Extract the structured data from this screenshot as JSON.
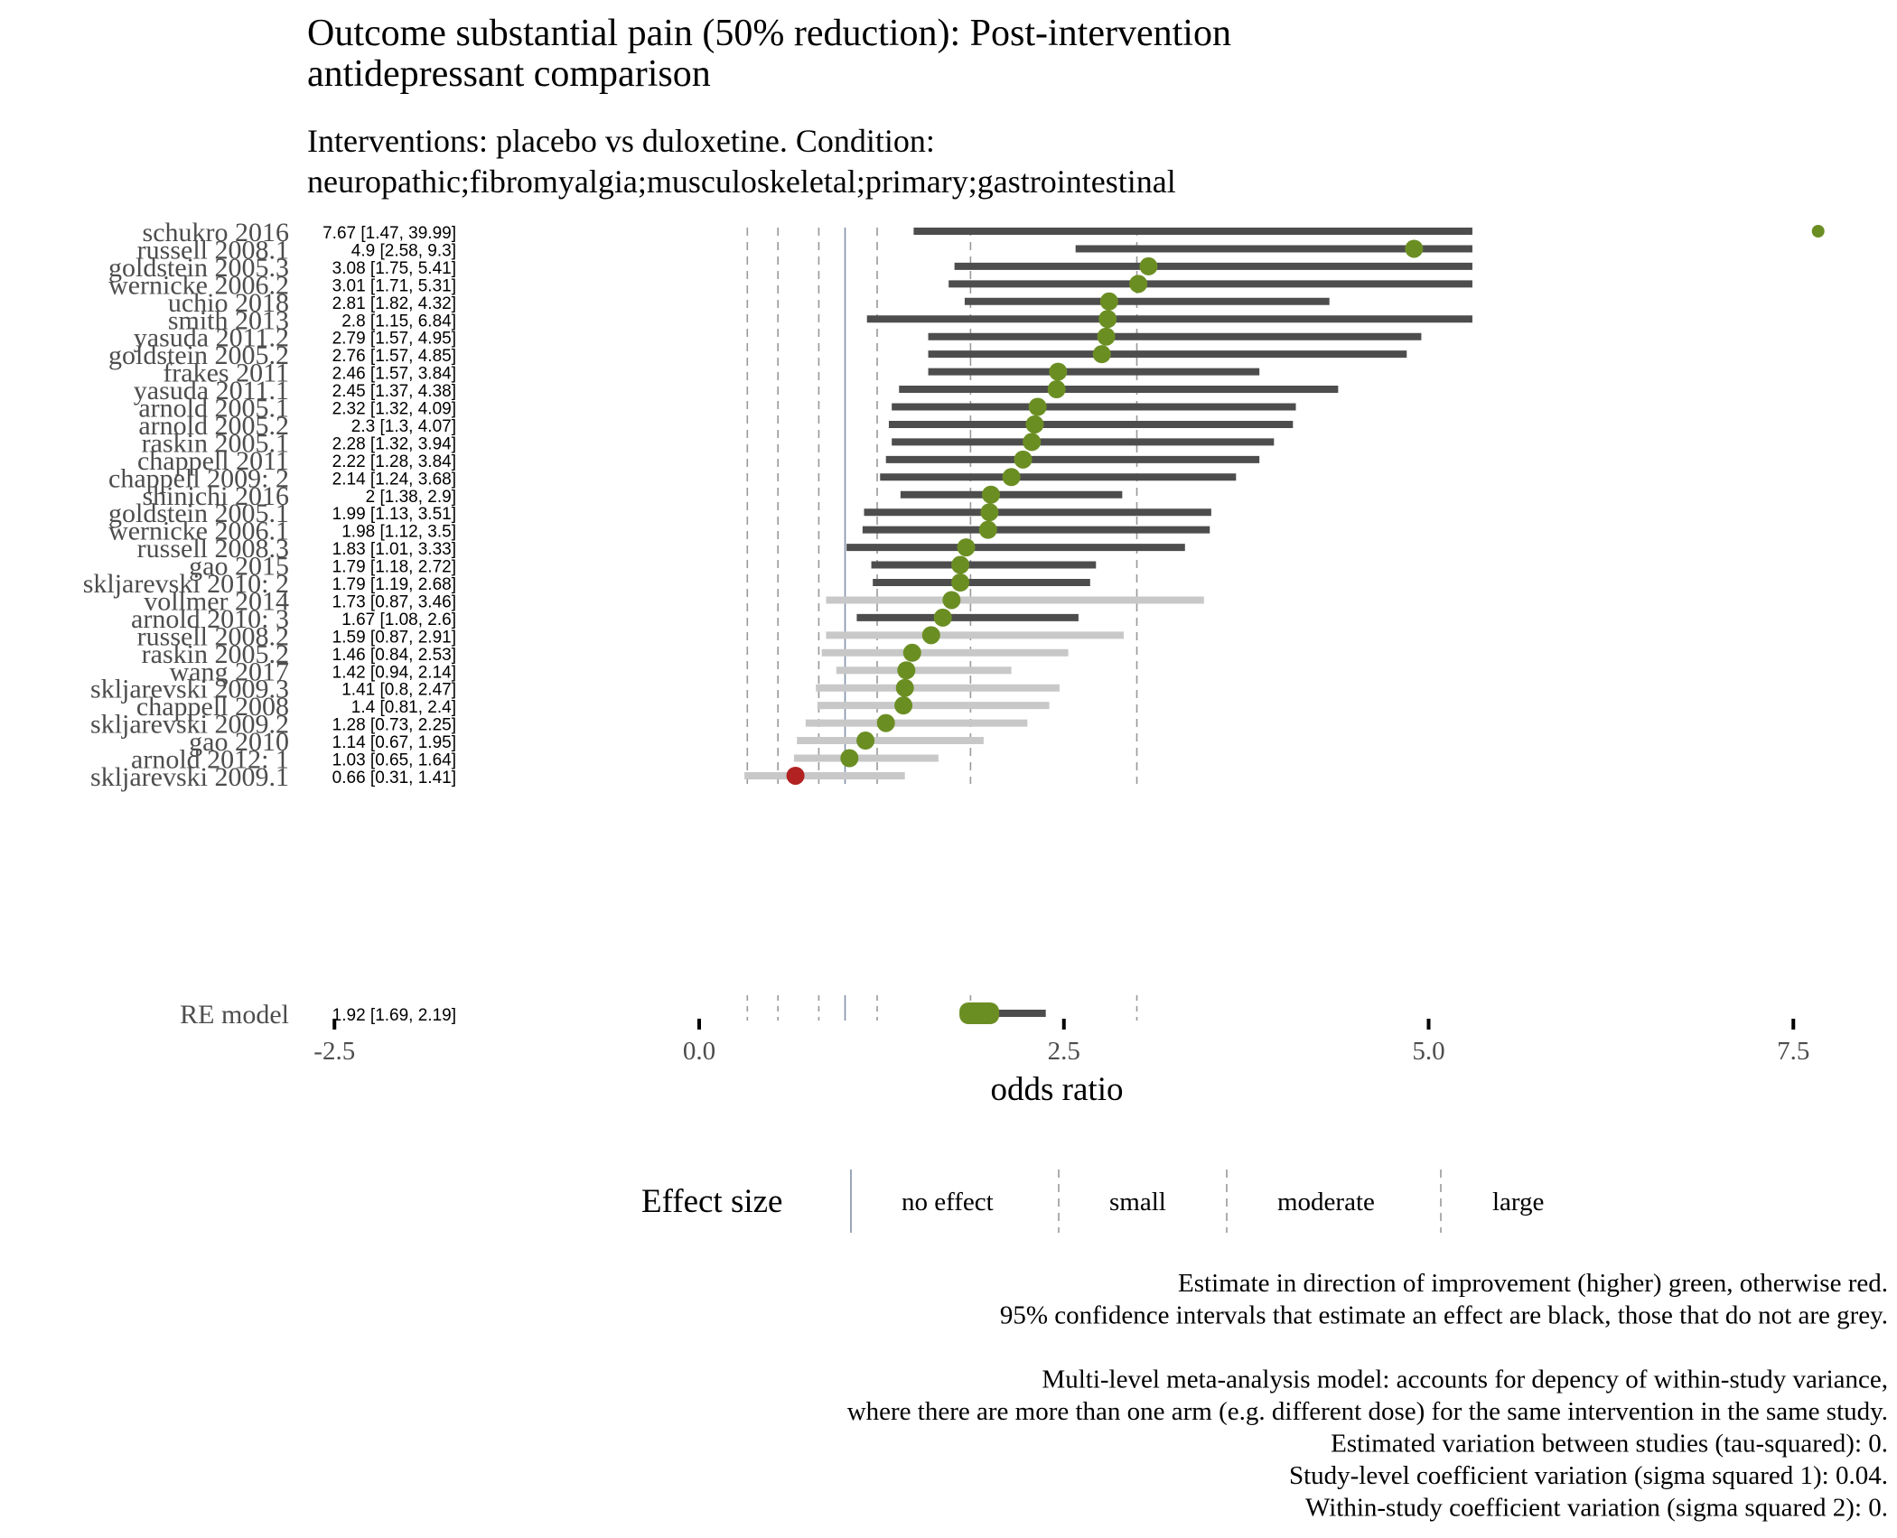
{
  "chart_data": {
    "type": "forest",
    "title_lines": [
      "Outcome substantial pain (50% reduction): Post-intervention",
      "antidepressant comparison"
    ],
    "subtitle_lines": [
      "Interventions: placebo vs duloxetine. Condition:",
      "neuropathic;fibromyalgia;musculoskeletal;primary;gastrointestinal"
    ],
    "xlabel": "odds ratio",
    "xlim": [
      -2.5,
      7.5
    ],
    "x_ticks": [
      -2.5,
      0.0,
      2.5,
      5.0,
      7.5
    ],
    "x_tick_labels": [
      "-2.5",
      "0.0",
      "2.5",
      "5.0",
      "7.5"
    ],
    "studies": [
      {
        "name": "schukro 2016",
        "label": "7.67 [1.47, 39.99]",
        "est": 7.67,
        "lo": 1.47,
        "hi": 39.99
      },
      {
        "name": "russell 2008.1",
        "label": "4.9 [2.58, 9.3]",
        "est": 4.9,
        "lo": 2.58,
        "hi": 9.3
      },
      {
        "name": "goldstein 2005.3",
        "label": "3.08 [1.75, 5.41]",
        "est": 3.08,
        "lo": 1.75,
        "hi": 5.41
      },
      {
        "name": "wernicke 2006.2",
        "label": "3.01 [1.71, 5.31]",
        "est": 3.01,
        "lo": 1.71,
        "hi": 5.31
      },
      {
        "name": "uchio 2018",
        "label": "2.81 [1.82, 4.32]",
        "est": 2.81,
        "lo": 1.82,
        "hi": 4.32
      },
      {
        "name": "smith 2013",
        "label": "2.8 [1.15, 6.84]",
        "est": 2.8,
        "lo": 1.15,
        "hi": 6.84
      },
      {
        "name": "yasuda 2011.2",
        "label": "2.79 [1.57, 4.95]",
        "est": 2.79,
        "lo": 1.57,
        "hi": 4.95
      },
      {
        "name": "goldstein 2005.2",
        "label": "2.76 [1.57, 4.85]",
        "est": 2.76,
        "lo": 1.57,
        "hi": 4.85
      },
      {
        "name": "frakes 2011",
        "label": "2.46 [1.57, 3.84]",
        "est": 2.46,
        "lo": 1.57,
        "hi": 3.84
      },
      {
        "name": "yasuda 2011.1",
        "label": "2.45 [1.37, 4.38]",
        "est": 2.45,
        "lo": 1.37,
        "hi": 4.38
      },
      {
        "name": "arnold 2005.1",
        "label": "2.32 [1.32, 4.09]",
        "est": 2.32,
        "lo": 1.32,
        "hi": 4.09
      },
      {
        "name": "arnold 2005.2",
        "label": "2.3 [1.3, 4.07]",
        "est": 2.3,
        "lo": 1.3,
        "hi": 4.07
      },
      {
        "name": "raskin 2005.1",
        "label": "2.28 [1.32, 3.94]",
        "est": 2.28,
        "lo": 1.32,
        "hi": 3.94
      },
      {
        "name": "chappell 2011",
        "label": "2.22 [1.28, 3.84]",
        "est": 2.22,
        "lo": 1.28,
        "hi": 3.84
      },
      {
        "name": "chappell 2009: 2",
        "label": "2.14 [1.24, 3.68]",
        "est": 2.14,
        "lo": 1.24,
        "hi": 3.68
      },
      {
        "name": "shinichi 2016",
        "label": "2 [1.38, 2.9]",
        "est": 2.0,
        "lo": 1.38,
        "hi": 2.9
      },
      {
        "name": "goldstein 2005.1",
        "label": "1.99 [1.13, 3.51]",
        "est": 1.99,
        "lo": 1.13,
        "hi": 3.51
      },
      {
        "name": "wernicke 2006.1",
        "label": "1.98 [1.12, 3.5]",
        "est": 1.98,
        "lo": 1.12,
        "hi": 3.5
      },
      {
        "name": "russell 2008.3",
        "label": "1.83 [1.01, 3.33]",
        "est": 1.83,
        "lo": 1.01,
        "hi": 3.33
      },
      {
        "name": "gao 2015",
        "label": "1.79 [1.18, 2.72]",
        "est": 1.79,
        "lo": 1.18,
        "hi": 2.72
      },
      {
        "name": "skljarevski 2010: 2",
        "label": "1.79 [1.19, 2.68]",
        "est": 1.79,
        "lo": 1.19,
        "hi": 2.68
      },
      {
        "name": "vollmer 2014",
        "label": "1.73 [0.87, 3.46]",
        "est": 1.73,
        "lo": 0.87,
        "hi": 3.46
      },
      {
        "name": "arnold 2010: 3",
        "label": "1.67 [1.08, 2.6]",
        "est": 1.67,
        "lo": 1.08,
        "hi": 2.6
      },
      {
        "name": "russell 2008.2",
        "label": "1.59 [0.87, 2.91]",
        "est": 1.59,
        "lo": 0.87,
        "hi": 2.91
      },
      {
        "name": "raskin 2005.2",
        "label": "1.46 [0.84, 2.53]",
        "est": 1.46,
        "lo": 0.84,
        "hi": 2.53
      },
      {
        "name": "wang 2017",
        "label": "1.42 [0.94, 2.14]",
        "est": 1.42,
        "lo": 0.94,
        "hi": 2.14
      },
      {
        "name": "skljarevski 2009.3",
        "label": "1.41 [0.8, 2.47]",
        "est": 1.41,
        "lo": 0.8,
        "hi": 2.47
      },
      {
        "name": "chappell 2008",
        "label": "1.4 [0.81, 2.4]",
        "est": 1.4,
        "lo": 0.81,
        "hi": 2.4
      },
      {
        "name": "skljarevski 2009.2",
        "label": "1.28 [0.73, 2.25]",
        "est": 1.28,
        "lo": 0.73,
        "hi": 2.25
      },
      {
        "name": "gao 2010",
        "label": "1.14 [0.67, 1.95]",
        "est": 1.14,
        "lo": 0.67,
        "hi": 1.95
      },
      {
        "name": "arnold 2012: 1",
        "label": "1.03 [0.65, 1.64]",
        "est": 1.03,
        "lo": 0.65,
        "hi": 1.64
      },
      {
        "name": "skljarevski 2009.1",
        "label": "0.66 [0.31, 1.41]",
        "est": 0.66,
        "lo": 0.31,
        "hi": 1.41
      }
    ],
    "summary": {
      "name": "RE model",
      "label": "1.92 [1.69, 2.19]",
      "est": 1.92,
      "lo": 1.69,
      "hi": 2.19
    },
    "x_clip_max": 5.3,
    "reference_lines": [
      {
        "value": 1.0,
        "kind": "no effect",
        "dash": "solid"
      },
      {
        "value": 1.22,
        "kind": "small",
        "dash": "dashed"
      },
      {
        "value": 1.86,
        "kind": "moderate",
        "dash": "dashed"
      },
      {
        "value": 3.0,
        "kind": "large",
        "dash": "dashed"
      },
      {
        "value": 0.82,
        "kind": "small",
        "dash": "dashed"
      },
      {
        "value": 0.54,
        "kind": "moderate",
        "dash": "dashed"
      },
      {
        "value": 0.33,
        "kind": "large",
        "dash": "dashed"
      }
    ],
    "legend": {
      "title": "Effect size",
      "items": [
        "no effect",
        "small",
        "moderate",
        "large"
      ],
      "placement": "bottom"
    },
    "colors": {
      "improvement": "#6b8e23",
      "no_improvement": "#b22222",
      "ci_effect": "#4d4d4d",
      "ci_no_effect": "#c8c8c8",
      "no_effect_line": "#8090a8",
      "dashed_line": "#999999"
    },
    "caption_lines": [
      "Estimate in direction of improvement (higher) green, otherwise red.",
      "95% confidence intervals that estimate an effect are black, those that do not are grey.",
      "",
      "Multi-level meta-analysis model: accounts for depency of within-study variance,",
      "where there are more than one arm (e.g. different dose) for the same intervention in the same study.",
      "Estimated variation between studies (tau-squared): 0.",
      "Study-level coefficient variation (sigma squared 1): 0.04.",
      "Within-study coefficient variation (sigma squared 2): 0."
    ]
  }
}
